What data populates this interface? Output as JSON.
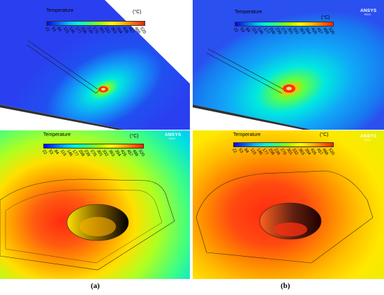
{
  "legend": {
    "title": "Temperature",
    "unit": "(°C)",
    "ticks": [
      "22",
      "53",
      "84",
      "115",
      "146",
      "177",
      "208",
      "239",
      "270",
      "301",
      "332",
      "363",
      "394",
      "426",
      "457",
      "488",
      "520"
    ],
    "gradient": [
      "#0000ff",
      "#0060ff",
      "#00c0ff",
      "#00ffd0",
      "#40ff70",
      "#a0ff00",
      "#ffff00",
      "#ffc000",
      "#ff7000",
      "#ff2000"
    ]
  },
  "brand": {
    "name": "ANSYS",
    "version": "R19.0"
  },
  "captions": {
    "a": "(a)",
    "b": "(b)"
  },
  "colors": {
    "plate_blue": "#2a40f0",
    "hot_core": "#ff2010",
    "background": "#ffffff"
  }
}
